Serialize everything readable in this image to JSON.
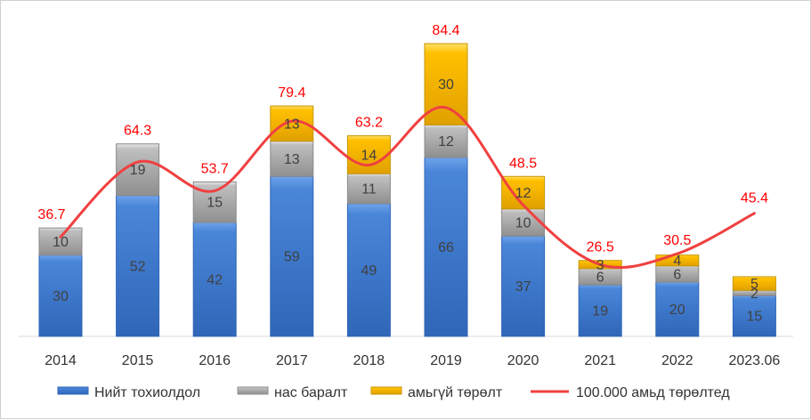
{
  "chart_data": {
    "type": "bar",
    "stacked": true,
    "categories": [
      "2014",
      "2015",
      "2016",
      "2017",
      "2018",
      "2019",
      "2020",
      "2021",
      "2022",
      "2023.06"
    ],
    "series": [
      {
        "name": "Нийт тохиолдол",
        "color": "#4a86d8",
        "values": [
          30,
          52,
          42,
          59,
          49,
          66,
          37,
          19,
          20,
          15
        ]
      },
      {
        "name": "нас баралт",
        "color": "#bfbfbf",
        "values": [
          10,
          19,
          15,
          13,
          11,
          12,
          10,
          6,
          6,
          2
        ]
      },
      {
        "name": "амьгүй төрөлт",
        "color": "#ffc000",
        "values": [
          null,
          null,
          null,
          13,
          14,
          30,
          12,
          3,
          4,
          5
        ]
      }
    ],
    "line_series": {
      "name": "100.000 амьд төрөлтед",
      "color": "#f04040",
      "label_color": "#ff0000",
      "values": [
        36.7,
        64.3,
        53.7,
        79.4,
        63.2,
        84.4,
        48.5,
        26.5,
        30.5,
        45.4
      ]
    },
    "ylim": [
      0,
      108
    ],
    "grid": false,
    "legend_position": "bottom"
  }
}
